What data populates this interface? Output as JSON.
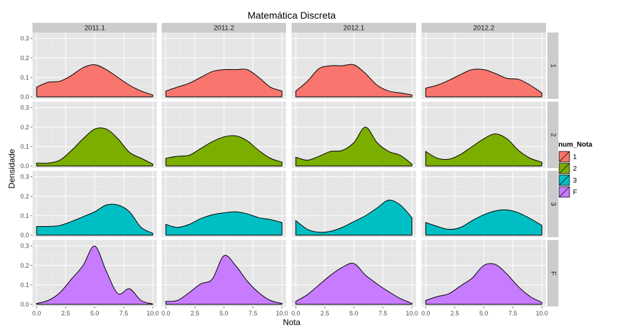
{
  "chart_data": {
    "type": "area",
    "title": "Matemática Discreta",
    "xlabel": "Nota",
    "ylabel": "Densidade",
    "xlim": [
      0,
      10
    ],
    "ylim": [
      0,
      0.32
    ],
    "x_ticks": [
      0,
      2.5,
      5,
      7.5,
      10
    ],
    "x_tick_labels": [
      "0.0",
      "2.5",
      "5.0",
      "7.5",
      "10.0"
    ],
    "y_ticks": [
      0,
      0.1,
      0.2,
      0.3
    ],
    "y_tick_labels": [
      "0.0",
      "0.1",
      "0.2",
      "0.3"
    ],
    "grid": true,
    "facet_columns": [
      "2011.1",
      "2011.2",
      "2012.1",
      "2012.2"
    ],
    "facet_rows": [
      "1",
      "2",
      "3",
      "F"
    ],
    "legend": {
      "title": "num_Nota",
      "position": "right",
      "entries": [
        {
          "label": "1",
          "color": "#F8766D"
        },
        {
          "label": "2",
          "color": "#7CAE00"
        },
        {
          "label": "3",
          "color": "#00BFC4"
        },
        {
          "label": "F",
          "color": "#C77CFF"
        }
      ]
    },
    "x": [
      0,
      1,
      2,
      3,
      4,
      5,
      6,
      7,
      8,
      9,
      10
    ],
    "panels": [
      {
        "column": "2011.1",
        "row": "1",
        "density": [
          0.05,
          0.075,
          0.08,
          0.11,
          0.15,
          0.165,
          0.14,
          0.1,
          0.06,
          0.03,
          0.01
        ]
      },
      {
        "column": "2011.2",
        "row": "1",
        "density": [
          0.03,
          0.05,
          0.07,
          0.1,
          0.13,
          0.14,
          0.14,
          0.14,
          0.1,
          0.05,
          0.03
        ]
      },
      {
        "column": "2012.1",
        "row": "1",
        "density": [
          0.03,
          0.08,
          0.145,
          0.16,
          0.16,
          0.165,
          0.12,
          0.06,
          0.03,
          0.02,
          0.01
        ]
      },
      {
        "column": "2012.2",
        "row": "1",
        "density": [
          0.045,
          0.06,
          0.085,
          0.115,
          0.14,
          0.14,
          0.12,
          0.095,
          0.09,
          0.06,
          0.02
        ]
      },
      {
        "column": "2011.1",
        "row": "2",
        "density": [
          0.015,
          0.015,
          0.03,
          0.08,
          0.14,
          0.19,
          0.19,
          0.14,
          0.07,
          0.04,
          0.01
        ]
      },
      {
        "column": "2011.2",
        "row": "2",
        "density": [
          0.04,
          0.05,
          0.055,
          0.09,
          0.125,
          0.15,
          0.155,
          0.13,
          0.08,
          0.04,
          0.02
        ]
      },
      {
        "column": "2012.1",
        "row": "2",
        "density": [
          0.045,
          0.03,
          0.05,
          0.075,
          0.08,
          0.12,
          0.2,
          0.12,
          0.075,
          0.055,
          0.01
        ]
      },
      {
        "column": "2012.2",
        "row": "2",
        "density": [
          0.075,
          0.04,
          0.035,
          0.06,
          0.1,
          0.14,
          0.165,
          0.14,
          0.08,
          0.04,
          0.02
        ]
      },
      {
        "column": "2011.1",
        "row": "3",
        "density": [
          0.045,
          0.045,
          0.05,
          0.07,
          0.095,
          0.12,
          0.155,
          0.155,
          0.12,
          0.04,
          0.01
        ]
      },
      {
        "column": "2011.2",
        "row": "3",
        "density": [
          0.055,
          0.04,
          0.055,
          0.085,
          0.105,
          0.115,
          0.12,
          0.11,
          0.09,
          0.08,
          0.065
        ]
      },
      {
        "column": "2012.1",
        "row": "3",
        "density": [
          0.075,
          0.03,
          0.015,
          0.02,
          0.04,
          0.07,
          0.1,
          0.14,
          0.18,
          0.155,
          0.09
        ]
      },
      {
        "column": "2012.2",
        "row": "3",
        "density": [
          0.065,
          0.045,
          0.03,
          0.04,
          0.075,
          0.105,
          0.125,
          0.13,
          0.115,
          0.085,
          0.05
        ]
      },
      {
        "column": "2011.1",
        "row": "F",
        "density": [
          0.005,
          0.02,
          0.06,
          0.13,
          0.2,
          0.3,
          0.17,
          0.055,
          0.08,
          0.02,
          0.002
        ]
      },
      {
        "column": "2011.2",
        "row": "F",
        "density": [
          0.015,
          0.02,
          0.06,
          0.105,
          0.13,
          0.25,
          0.2,
          0.12,
          0.06,
          0.02,
          0.005
        ]
      },
      {
        "column": "2012.1",
        "row": "F",
        "density": [
          0.015,
          0.05,
          0.1,
          0.15,
          0.19,
          0.21,
          0.15,
          0.105,
          0.065,
          0.03,
          0.005
        ]
      },
      {
        "column": "2012.2",
        "row": "F",
        "density": [
          0.02,
          0.04,
          0.055,
          0.095,
          0.135,
          0.2,
          0.205,
          0.155,
          0.09,
          0.04,
          0.01
        ]
      }
    ]
  }
}
